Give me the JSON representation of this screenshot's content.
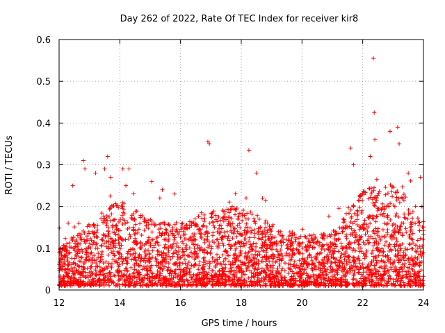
{
  "chart_data": {
    "type": "scatter",
    "title": "Day 262 of 2022, Rate Of TEC Index for receiver kir8",
    "xlabel": "GPS time / hours",
    "ylabel": "ROTI / TECUs",
    "xlim": [
      12,
      24
    ],
    "ylim": [
      0,
      0.6
    ],
    "xticks": [
      12,
      14,
      16,
      18,
      20,
      22,
      24
    ],
    "yticks": [
      0,
      0.1,
      0.2,
      0.3,
      0.4,
      0.5,
      0.6
    ],
    "xtick_labels": [
      "12",
      "14",
      "16",
      "18",
      "20",
      "22",
      "24"
    ],
    "ytick_labels": [
      "0",
      "0.1",
      "0.2",
      "0.3",
      "0.4",
      "0.5",
      "0.6"
    ],
    "grid": true,
    "marker": "+",
    "marker_color": "#ff0000",
    "series": [
      {
        "name": "ROTI",
        "x": [
          12.05,
          12.3,
          12.45,
          12.8,
          12.85,
          13.2,
          13.5,
          13.6,
          13.7,
          14.1,
          14.2,
          14.3,
          15.05,
          15.4,
          15.8,
          16.9,
          16.95,
          17.7,
          18.25,
          18.5,
          18.7,
          21.6,
          21.7,
          22.25,
          22.35,
          22.38,
          22.4,
          22.9,
          23.15,
          23.2,
          23.5,
          23.9,
          23.95
        ],
        "y": [
          0.09,
          0.16,
          0.25,
          0.31,
          0.29,
          0.28,
          0.29,
          0.32,
          0.27,
          0.29,
          0.25,
          0.29,
          0.26,
          0.24,
          0.23,
          0.355,
          0.35,
          0.2,
          0.335,
          0.28,
          0.22,
          0.34,
          0.3,
          0.32,
          0.555,
          0.425,
          0.36,
          0.38,
          0.39,
          0.35,
          0.28,
          0.27,
          0.2
        ]
      }
    ],
    "density_profile": {
      "description": "hourly envelope of the dense ROTI point cloud",
      "hours": [
        12,
        13,
        14,
        15,
        16,
        17,
        18,
        19,
        20,
        21,
        22,
        23,
        24
      ],
      "typical_max": [
        0.1,
        0.16,
        0.22,
        0.17,
        0.16,
        0.19,
        0.2,
        0.16,
        0.13,
        0.14,
        0.24,
        0.26,
        0.18
      ],
      "typical_min": [
        0.01,
        0.01,
        0.01,
        0.01,
        0.01,
        0.01,
        0.01,
        0.01,
        0.01,
        0.01,
        0.01,
        0.01,
        0.01
      ]
    }
  }
}
